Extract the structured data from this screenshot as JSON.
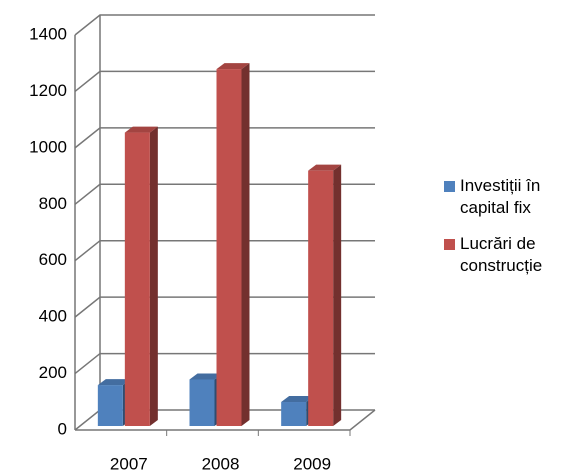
{
  "chart_data": {
    "type": "bar3d",
    "categories": [
      "2007",
      "2008",
      "2009"
    ],
    "series": [
      {
        "name": "Investiții în capital fix",
        "color": "#4f81bd",
        "values": [
          145,
          165,
          85
        ]
      },
      {
        "name": "Lucrări de construcție",
        "color": "#c0504d",
        "values": [
          1040,
          1265,
          905
        ]
      }
    ],
    "ylim": [
      0,
      1400
    ],
    "yticks": [
      0,
      200,
      400,
      600,
      800,
      1000,
      1200,
      1400
    ],
    "grid": true,
    "legend": "right"
  }
}
